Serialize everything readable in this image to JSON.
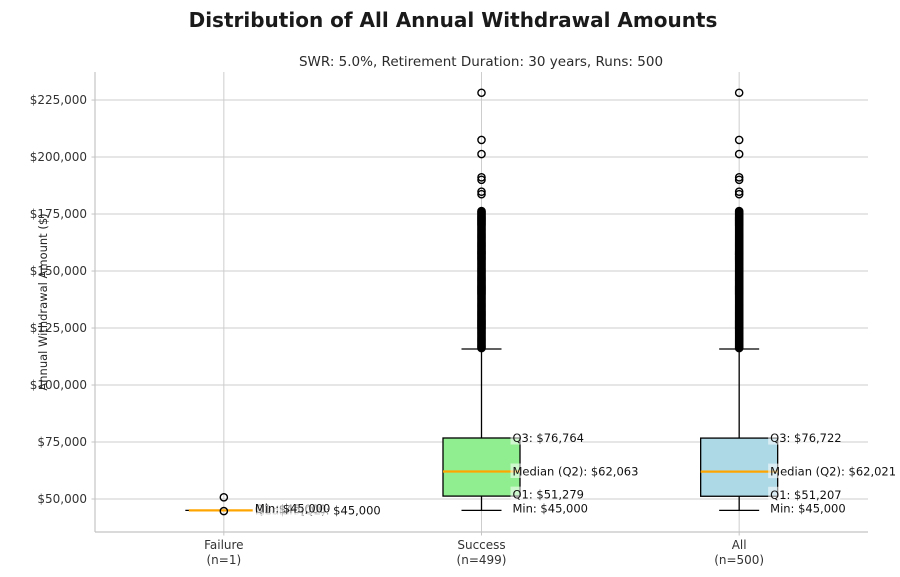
{
  "chart_data": {
    "type": "boxplot",
    "title": "Distribution of All Annual Withdrawal Amounts",
    "subtitle": "SWR: 5.0%, Retirement Duration: 30 years, Runs: 500",
    "ylabel": "Annual Withdrawal Amount ($)",
    "ylim": [
      35530,
      237300
    ],
    "grid": true,
    "legend": "none",
    "yticks": [
      {
        "value": 50000,
        "label": "$50,000"
      },
      {
        "value": 75000,
        "label": "$75,000"
      },
      {
        "value": 100000,
        "label": "$100,000"
      },
      {
        "value": 125000,
        "label": "$125,000"
      },
      {
        "value": 150000,
        "label": "$150,000"
      },
      {
        "value": 175000,
        "label": "$175,000"
      },
      {
        "value": 200000,
        "label": "$200,000"
      },
      {
        "value": 225000,
        "label": "$225,000"
      }
    ],
    "colors": {
      "median_line": "#FFA500",
      "box_edge": "#000000",
      "outlier_edge": "#000000",
      "grid": "#cdcdcd",
      "spine": "#c4c4c4",
      "text": "#262626"
    },
    "series": [
      {
        "category": "Failure",
        "category_sub": "(n=1)",
        "fill": null,
        "stats": {
          "whisker_low": 45000,
          "q1": 45000,
          "median": 45000,
          "q3": 45000,
          "whisker_high": 45000
        },
        "outliers": [
          50750,
          44700
        ],
        "outlier_band": null,
        "labels": [
          {
            "text": "Q3: $45,000",
            "value": 45000
          },
          {
            "text": "Median (Q2): $45,000",
            "value": 45000
          },
          {
            "text": "Q1: $45,000",
            "value": 45000
          },
          {
            "text": "Min: $45,000",
            "value": 45000
          }
        ]
      },
      {
        "category": "Success",
        "category_sub": "(n=499)",
        "fill": "#90EE90",
        "stats": {
          "whisker_low": 45000,
          "q1": 51279,
          "median": 62063,
          "q3": 76764,
          "whisker_high": 115800
        },
        "outliers": [
          228200,
          207500,
          201300,
          191100,
          190000,
          184800,
          183700
        ],
        "outlier_band": {
          "low": 116200,
          "high": 176300,
          "count": 140
        },
        "labels": [
          {
            "text": "Q3: $76,764",
            "value": 76764
          },
          {
            "text": "Median (Q2): $62,063",
            "value": 62063
          },
          {
            "text": "Q1: $51,279",
            "value": 51279
          },
          {
            "text": "Min: $45,000",
            "value": 45000
          }
        ]
      },
      {
        "category": "All",
        "category_sub": "(n=500)",
        "fill": "#ADD8E6",
        "stats": {
          "whisker_low": 45000,
          "q1": 51207,
          "median": 62021,
          "q3": 76722,
          "whisker_high": 115800
        },
        "outliers": [
          228200,
          207500,
          201300,
          191100,
          190000,
          184800,
          183700
        ],
        "outlier_band": {
          "low": 116200,
          "high": 176300,
          "count": 140
        },
        "labels": [
          {
            "text": "Q3: $76,722",
            "value": 76722
          },
          {
            "text": "Median (Q2): $62,021",
            "value": 62021
          },
          {
            "text": "Q1: $51,207",
            "value": 51207
          },
          {
            "text": "Min: $45,000",
            "value": 45000
          }
        ]
      }
    ]
  }
}
